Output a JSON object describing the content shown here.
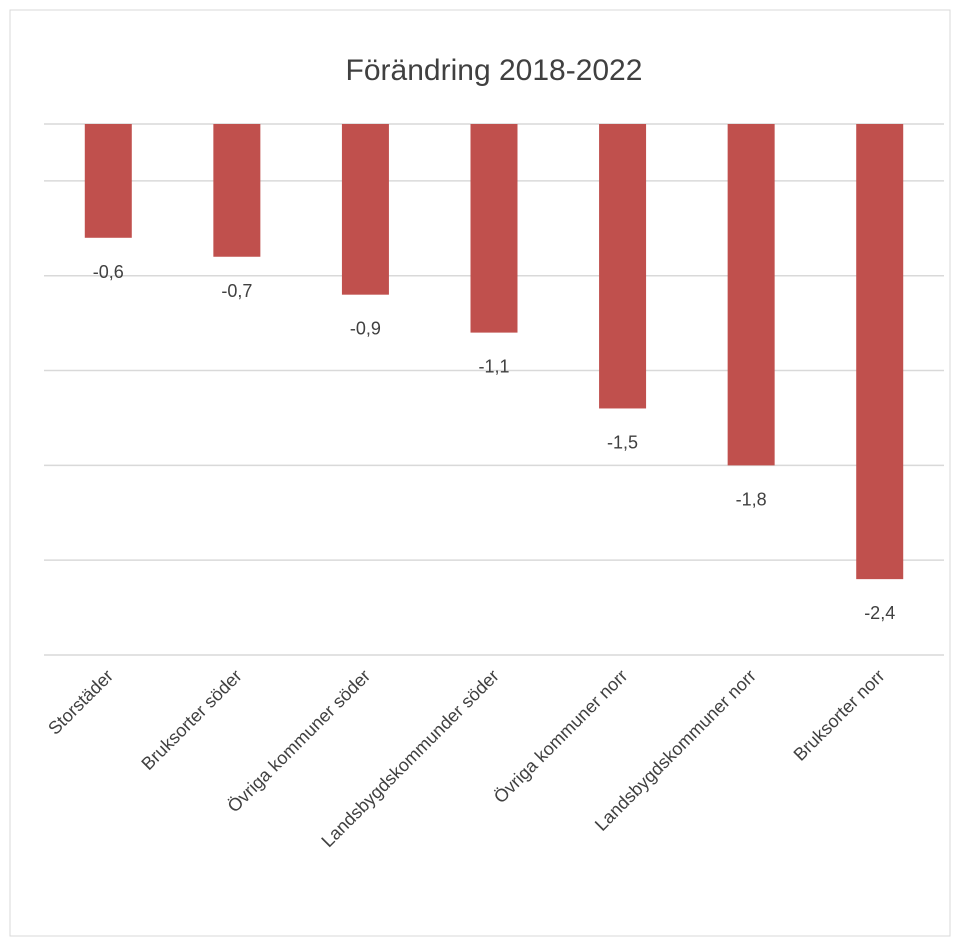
{
  "chart_data": {
    "type": "bar",
    "title": "Förändring 2018-2022",
    "categories": [
      "Storstäder",
      "Bruksorter söder",
      "Övriga kommuner söder",
      "Landsbygdskommunder söder",
      "Övriga kommuner norr",
      "Landsbygdskommuner norr",
      "Bruksorter norr"
    ],
    "values": [
      -0.6,
      -0.7,
      -0.9,
      -1.1,
      -1.5,
      -1.8,
      -2.4
    ],
    "value_labels": [
      "-0,6",
      "-0,7",
      "-0,9",
      "-1,1",
      "-1,5",
      "-1,8",
      "-2,4"
    ],
    "color": "#c0504d",
    "ylim": [
      -2.8,
      0
    ],
    "yticks": [
      0,
      -0.3,
      -0.8,
      -1.3,
      -1.8,
      -2.3,
      -2.8
    ],
    "grid": true
  }
}
